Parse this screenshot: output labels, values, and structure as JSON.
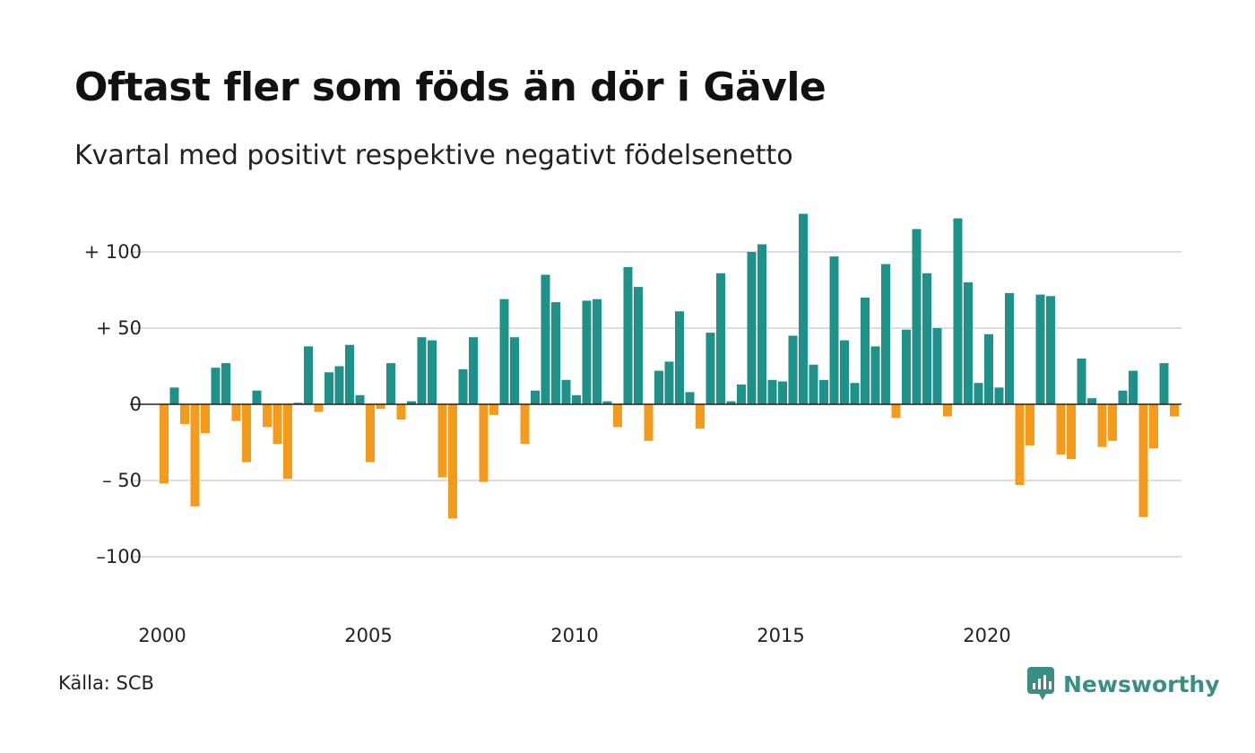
{
  "title": "Oftast fler som föds än dör i Gävle",
  "subtitle": "Kvartal med positivt respektive negativt födelsenetto",
  "source": "Källa: SCB",
  "brand": "Newsworthy",
  "colors": {
    "positive": "#1e9188",
    "negative": "#f59b1c",
    "grid": "#dddddd",
    "zero": "#222222",
    "brand": "#3a8f85"
  },
  "chart_data": {
    "type": "bar",
    "x_start": "2000 Q1",
    "x_ticks": [
      "2000",
      "2005",
      "2010",
      "2015",
      "2020"
    ],
    "y_ticks": [
      {
        "value": 100,
        "label": "+ 100"
      },
      {
        "value": 50,
        "label": "+  50"
      },
      {
        "value": 0,
        "label": "0"
      },
      {
        "value": -50,
        "label": "– 50"
      },
      {
        "value": -100,
        "label": "–100"
      }
    ],
    "ylim": [
      -130,
      130
    ],
    "series": [
      {
        "values": [
          -52,
          11,
          -13,
          -67,
          -19,
          24,
          27,
          -11,
          -38,
          9,
          -15,
          -26,
          -49,
          1,
          38,
          -5,
          21,
          25,
          39,
          6,
          -38,
          -3,
          27,
          -10,
          2,
          44,
          42,
          -48,
          -75,
          23,
          44,
          -51,
          -7,
          69,
          44,
          -26,
          9,
          85,
          67,
          16,
          6,
          68,
          69,
          2,
          -15,
          90,
          77,
          -24,
          22,
          28,
          61,
          8,
          -16,
          47,
          86,
          2,
          13,
          100,
          105,
          16,
          15,
          45,
          125,
          26,
          16,
          97,
          42,
          14,
          70,
          38,
          92,
          -9,
          49,
          115,
          86,
          50,
          -8,
          122,
          80,
          14,
          46,
          11,
          73,
          -53,
          -27,
          72,
          71,
          -33,
          -36,
          30,
          4,
          -28,
          -24,
          9,
          22,
          -74,
          -29,
          27,
          -8
        ]
      }
    ]
  }
}
